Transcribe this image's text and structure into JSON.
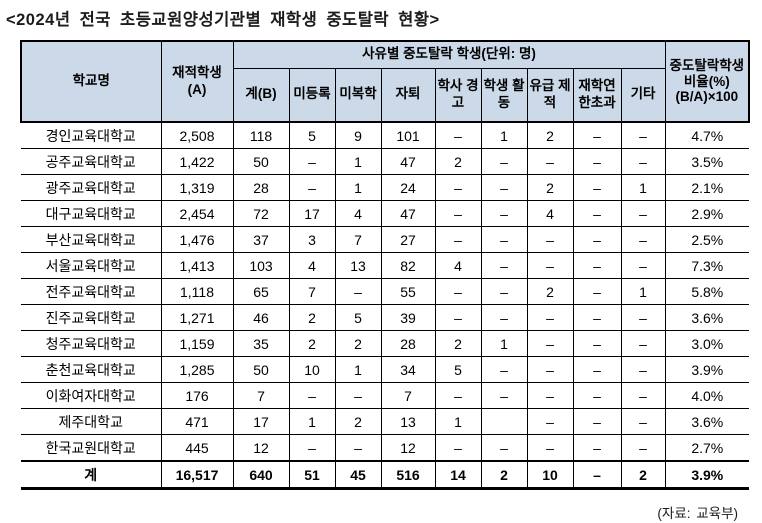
{
  "title": "<2024년 전국 초등교원양성기관별 재학생 중도탈락 현황>",
  "table": {
    "header": {
      "school": "학교명",
      "enrolled1": "재적학생",
      "enrolled2": "(A)",
      "group": "사유별 중도탈락 학생(단위: 명)",
      "sub": [
        "계(B)",
        "미등록",
        "미복학",
        "자퇴",
        "학사 경고",
        "학생 활동",
        "유급 제적",
        "재학연한초과",
        "기타"
      ],
      "ratio1": "중도탈락학생비율(%)",
      "ratio2": "(B/A)×100"
    },
    "rows": [
      [
        "경인교육대학교",
        "2,508",
        "118",
        "5",
        "9",
        "101",
        "–",
        "1",
        "2",
        "–",
        "–",
        "4.7%"
      ],
      [
        "공주교육대학교",
        "1,422",
        "50",
        "–",
        "1",
        "47",
        "2",
        "–",
        "–",
        "–",
        "–",
        "3.5%"
      ],
      [
        "광주교육대학교",
        "1,319",
        "28",
        "–",
        "1",
        "24",
        "–",
        "–",
        "2",
        "–",
        "1",
        "2.1%"
      ],
      [
        "대구교육대학교",
        "2,454",
        "72",
        "17",
        "4",
        "47",
        "–",
        "–",
        "4",
        "–",
        "–",
        "2.9%"
      ],
      [
        "부산교육대학교",
        "1,476",
        "37",
        "3",
        "7",
        "27",
        "–",
        "–",
        "–",
        "–",
        "–",
        "2.5%"
      ],
      [
        "서울교육대학교",
        "1,413",
        "103",
        "4",
        "13",
        "82",
        "4",
        "–",
        "–",
        "–",
        "–",
        "7.3%"
      ],
      [
        "전주교육대학교",
        "1,118",
        "65",
        "7",
        "–",
        "55",
        "–",
        "–",
        "2",
        "–",
        "1",
        "5.8%"
      ],
      [
        "진주교육대학교",
        "1,271",
        "46",
        "2",
        "5",
        "39",
        "–",
        "–",
        "–",
        "–",
        "–",
        "3.6%"
      ],
      [
        "청주교육대학교",
        "1,159",
        "35",
        "2",
        "2",
        "28",
        "2",
        "1",
        "–",
        "–",
        "–",
        "3.0%"
      ],
      [
        "춘천교육대학교",
        "1,285",
        "50",
        "10",
        "1",
        "34",
        "5",
        "–",
        "–",
        "–",
        "–",
        "3.9%"
      ],
      [
        "이화여자대학교",
        "176",
        "7",
        "–",
        "–",
        "7",
        "–",
        "–",
        "–",
        "–",
        "–",
        "4.0%"
      ],
      [
        "제주대학교",
        "471",
        "17",
        "1",
        "2",
        "13",
        "1",
        "",
        "–",
        "–",
        "–",
        "3.6%"
      ],
      [
        "한국교원대학교",
        "445",
        "12",
        "–",
        "–",
        "12",
        "–",
        "–",
        "–",
        "–",
        "–",
        "2.7%"
      ]
    ],
    "total_row": [
      "계",
      "16,517",
      "640",
      "51",
      "45",
      "516",
      "14",
      "2",
      "10",
      "–",
      "2",
      "3.9%"
    ]
  },
  "footer": "(자료: 교육부)"
}
